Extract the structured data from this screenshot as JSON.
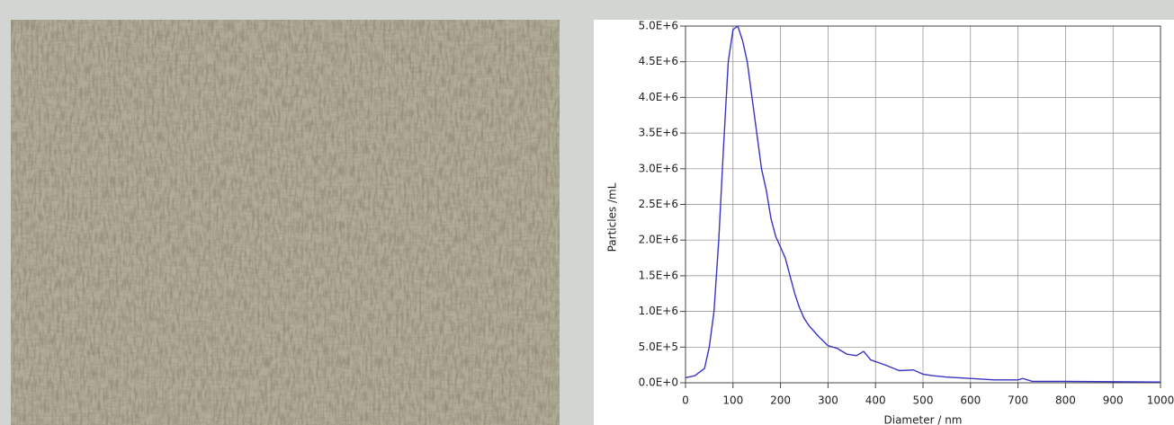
{
  "chart_data": {
    "type": "line",
    "x_label": "Diameter / nm",
    "y_label": "Particles /mL",
    "x": [
      0,
      20,
      40,
      50,
      60,
      70,
      80,
      90,
      100,
      110,
      120,
      130,
      140,
      150,
      160,
      170,
      180,
      190,
      200,
      210,
      220,
      230,
      240,
      250,
      260,
      280,
      300,
      320,
      340,
      360,
      375,
      390,
      420,
      450,
      480,
      500,
      520,
      550,
      600,
      650,
      700,
      710,
      730,
      800,
      1000
    ],
    "values": [
      70000,
      100000,
      200000,
      500000,
      1000000,
      2000000,
      3300000,
      4500000,
      4950000,
      5000000,
      4800000,
      4500000,
      4000000,
      3500000,
      3000000,
      2700000,
      2300000,
      2050000,
      1900000,
      1750000,
      1500000,
      1250000,
      1050000,
      900000,
      800000,
      650000,
      520000,
      480000,
      400000,
      380000,
      440000,
      320000,
      250000,
      170000,
      180000,
      120000,
      100000,
      80000,
      60000,
      40000,
      40000,
      60000,
      20000,
      20000,
      10000
    ],
    "color": "#3a33c4",
    "xlim": [
      0,
      1000
    ],
    "xticks": [
      0,
      100,
      200,
      300,
      400,
      500,
      600,
      700,
      800,
      900,
      1000
    ],
    "ylim": [
      0,
      5000000
    ],
    "yticks": [
      {
        "value": 0,
        "label": "0.0E+0"
      },
      {
        "value": 500000,
        "label": "5.0E+5"
      },
      {
        "value": 1000000,
        "label": "1.0E+6"
      },
      {
        "value": 1500000,
        "label": "1.5E+6"
      },
      {
        "value": 2000000,
        "label": "2.0E+6"
      },
      {
        "value": 2500000,
        "label": "2.5E+6"
      },
      {
        "value": 3000000,
        "label": "3.0E+6"
      },
      {
        "value": 3500000,
        "label": "3.5E+6"
      },
      {
        "value": 4000000,
        "label": "4.0E+6"
      },
      {
        "value": 4500000,
        "label": "4.5E+6"
      },
      {
        "value": 5000000,
        "label": "5.0E+6"
      }
    ],
    "grid": true
  }
}
